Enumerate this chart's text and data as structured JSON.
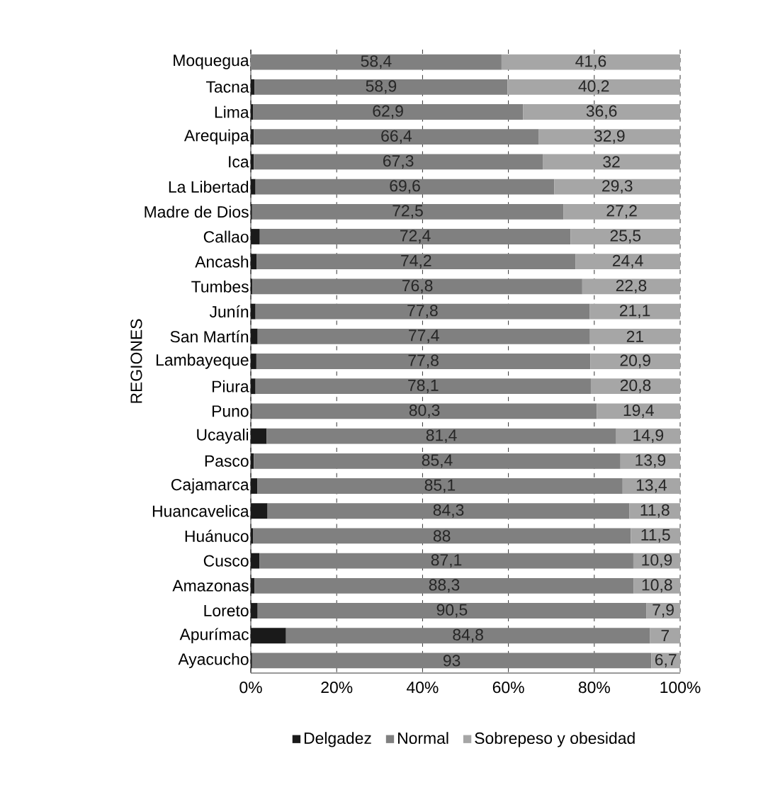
{
  "chart_data": {
    "type": "bar",
    "orientation": "horizontal",
    "stacked": true,
    "ylabel": "REGIONES",
    "categories": [
      "Moquegua",
      "Tacna",
      "Lima",
      "Arequipa",
      "Ica",
      "La Libertad",
      "Madre de Dios",
      "Callao",
      "Ancash",
      "Tumbes",
      "Junín",
      "San Martín",
      "Lambayeque",
      "Piura",
      "Puno",
      "Ucayali",
      "Pasco",
      "Cajamarca",
      "Huancavelica",
      "Huánuco",
      "Cusco",
      "Amazonas",
      "Loreto",
      "Apurímac",
      "Ayacucho"
    ],
    "series": [
      {
        "name": "Delgadez",
        "color": "#1a1a1a",
        "values": [
          0,
          0.9,
          0.5,
          0.7,
          0.7,
          1.1,
          0.3,
          2.1,
          1.4,
          0.4,
          1.1,
          1.6,
          1.3,
          1.1,
          0.3,
          3.7,
          0.7,
          1.5,
          3.9,
          0.5,
          2.0,
          0.9,
          1.6,
          8.2,
          0.3
        ]
      },
      {
        "name": "Normal",
        "color": "#808080",
        "values": [
          58.4,
          58.9,
          62.9,
          66.4,
          67.3,
          69.6,
          72.5,
          72.4,
          74.2,
          76.8,
          77.8,
          77.4,
          77.8,
          78.1,
          80.3,
          81.4,
          85.4,
          85.1,
          84.3,
          88,
          87.1,
          88.3,
          90.5,
          84.8,
          93
        ],
        "value_labels": [
          "58,4",
          "58,9",
          "62,9",
          "66,4",
          "67,3",
          "69,6",
          "72,5",
          "72,4",
          "74,2",
          "76,8",
          "77,8",
          "77,4",
          "77,8",
          "78,1",
          "80,3",
          "81,4",
          "85,4",
          "85,1",
          "84,3",
          "88",
          "87,1",
          "88,3",
          "90,5",
          "84,8",
          "93"
        ]
      },
      {
        "name": "Sobrepeso y obesidad",
        "color": "#a6a6a6",
        "values": [
          41.6,
          40.2,
          36.6,
          32.9,
          32,
          29.3,
          27.2,
          25.5,
          24.4,
          22.8,
          21.1,
          21,
          20.9,
          20.8,
          19.4,
          14.9,
          13.9,
          13.4,
          11.8,
          11.5,
          10.9,
          10.8,
          7.9,
          7,
          6.7
        ],
        "value_labels": [
          "41,6",
          "40,2",
          "36,6",
          "32,9",
          "32",
          "29,3",
          "27,2",
          "25,5",
          "24,4",
          "22,8",
          "21,1",
          "21",
          "20,9",
          "20,8",
          "19,4",
          "14,9",
          "13,9",
          "13,4",
          "11,8",
          "11,5",
          "10,9",
          "10,8",
          "7,9",
          "7",
          "6,7"
        ]
      }
    ],
    "xlim": [
      0,
      100
    ],
    "xticks": [
      {
        "value": 0,
        "label": "0%"
      },
      {
        "value": 20,
        "label": "20%"
      },
      {
        "value": 40,
        "label": "40%"
      },
      {
        "value": 60,
        "label": "60%"
      },
      {
        "value": 80,
        "label": "80%"
      },
      {
        "value": 100,
        "label": "100%"
      }
    ],
    "grid": "x",
    "line_style": "dashed",
    "legend": "bottom"
  }
}
